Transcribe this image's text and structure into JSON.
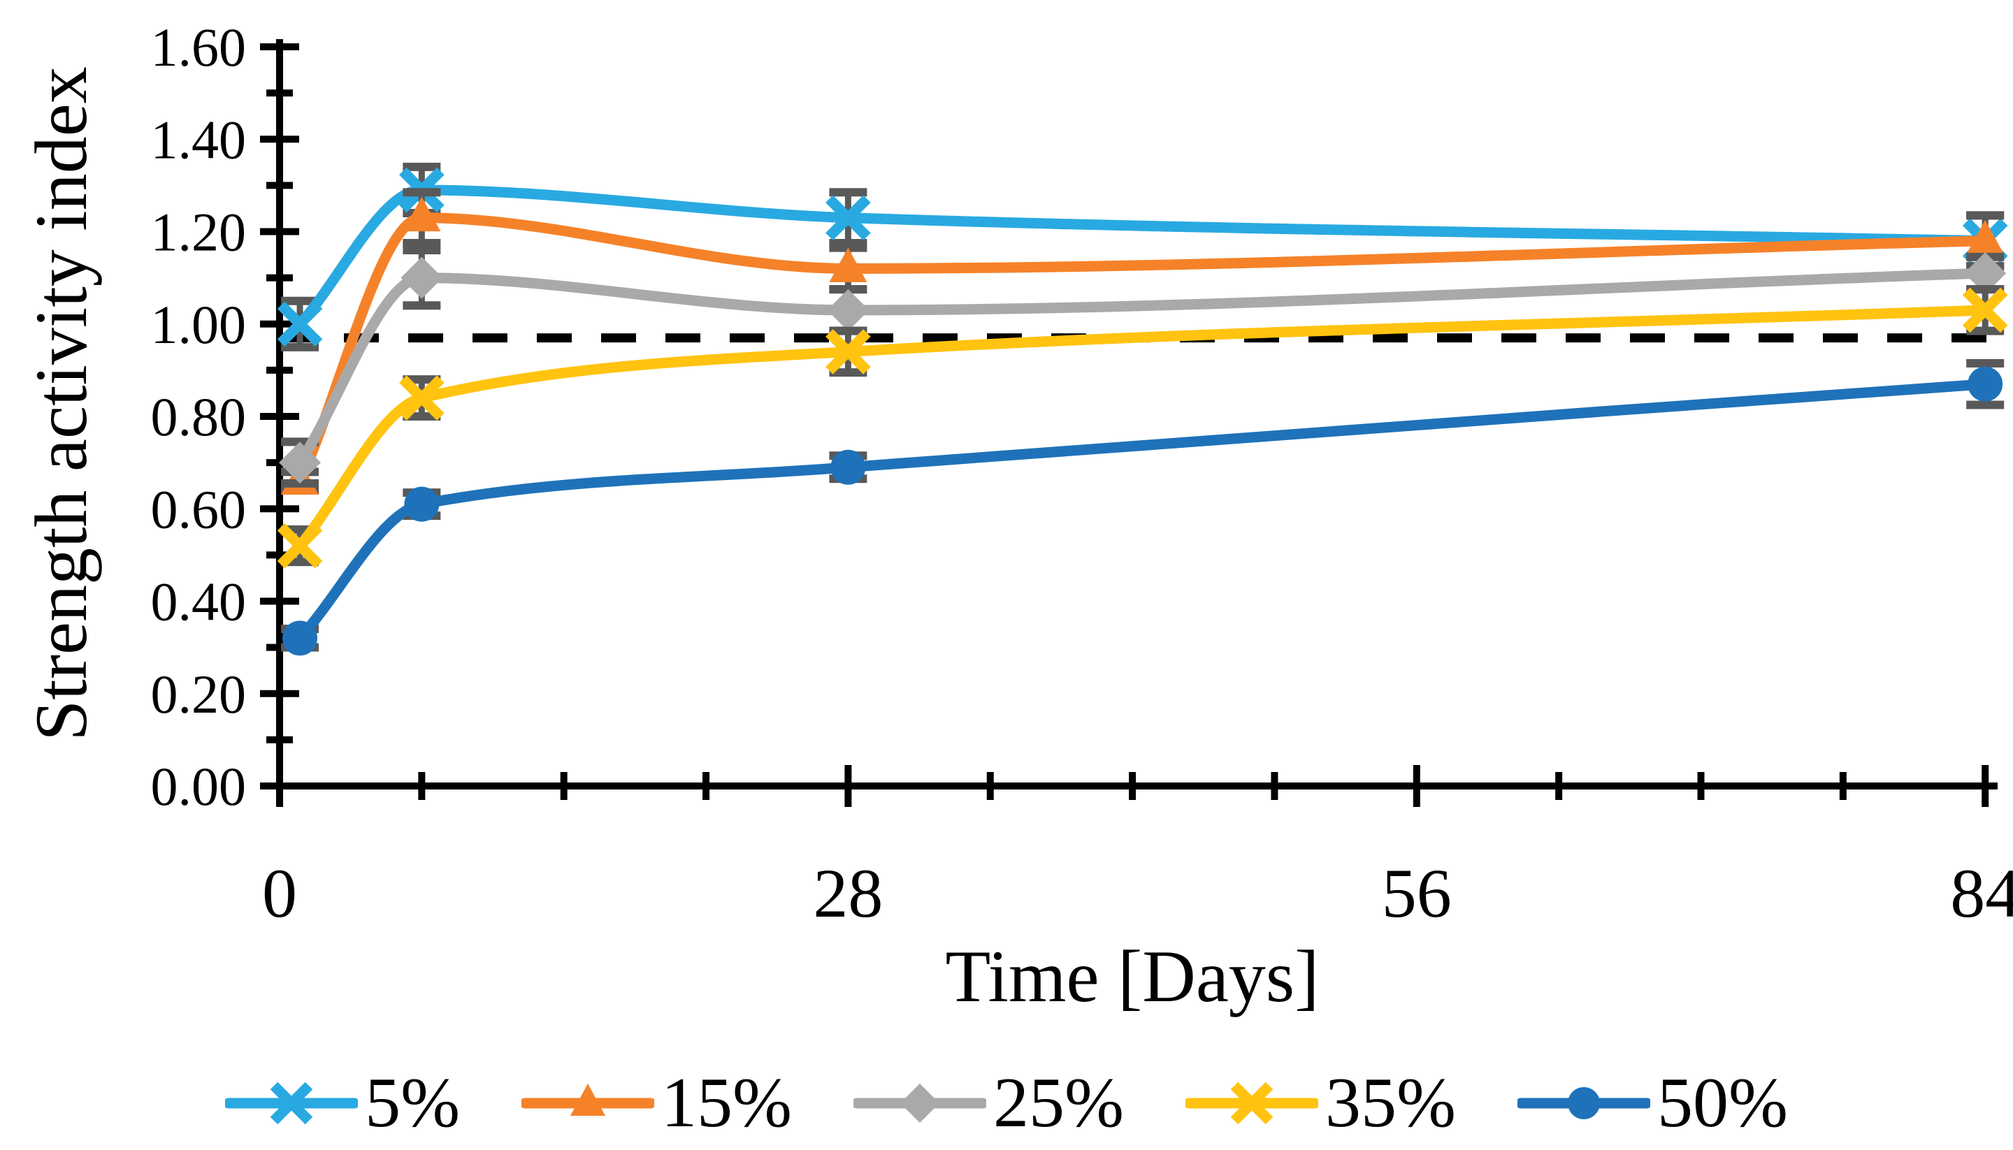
{
  "chart_data": {
    "type": "line",
    "title": "",
    "xlabel": "Time [Days]",
    "ylabel": "Strength activity index",
    "x": [
      1,
      7,
      28,
      84
    ],
    "series": [
      {
        "name": "5%",
        "color": "#29A9E1",
        "marker": "x-cross",
        "values": [
          1.0,
          1.29,
          1.23,
          1.18
        ],
        "errors": [
          0.05,
          0.05,
          0.055,
          0.055
        ]
      },
      {
        "name": "15%",
        "color": "#F58229",
        "marker": "triangle",
        "values": [
          0.66,
          1.23,
          1.12,
          1.18
        ],
        "errors": [
          0.02,
          0.055,
          0.045,
          0.055
        ]
      },
      {
        "name": "25%",
        "color": "#A9A9A9",
        "marker": "diamond",
        "values": [
          0.7,
          1.1,
          1.03,
          1.11
        ],
        "errors": [
          0.045,
          0.06,
          0.045,
          0.035
        ]
      },
      {
        "name": "35%",
        "color": "#FFC310",
        "marker": "x-cross",
        "values": [
          0.52,
          0.84,
          0.94,
          1.03
        ],
        "errors": [
          0.035,
          0.04,
          0.045,
          0.045
        ]
      },
      {
        "name": "50%",
        "color": "#1F72B9",
        "marker": "circle",
        "values": [
          0.32,
          0.61,
          0.69,
          0.87
        ],
        "errors": [
          0.02,
          0.025,
          0.025,
          0.045
        ]
      }
    ],
    "reference_line": {
      "y": 0.97,
      "style": "dashed",
      "color": "#000000"
    },
    "x_axis": {
      "min": 0,
      "max": 84,
      "major_ticks": [
        0,
        28,
        56,
        84
      ],
      "minor_tick_step": 7
    },
    "y_axis": {
      "min": 0.0,
      "max": 1.6,
      "major_tick_step": 0.2,
      "minor_tick_step": 0.1,
      "tick_labels": [
        "0.00",
        "0.20",
        "0.40",
        "0.60",
        "0.80",
        "1.00",
        "1.20",
        "1.40",
        "1.60"
      ]
    },
    "error_bar_color": "#595959",
    "legend": {
      "position": "bottom",
      "labels": [
        "5%",
        "15%",
        "25%",
        "35%",
        "50%"
      ]
    },
    "grid": "off"
  }
}
